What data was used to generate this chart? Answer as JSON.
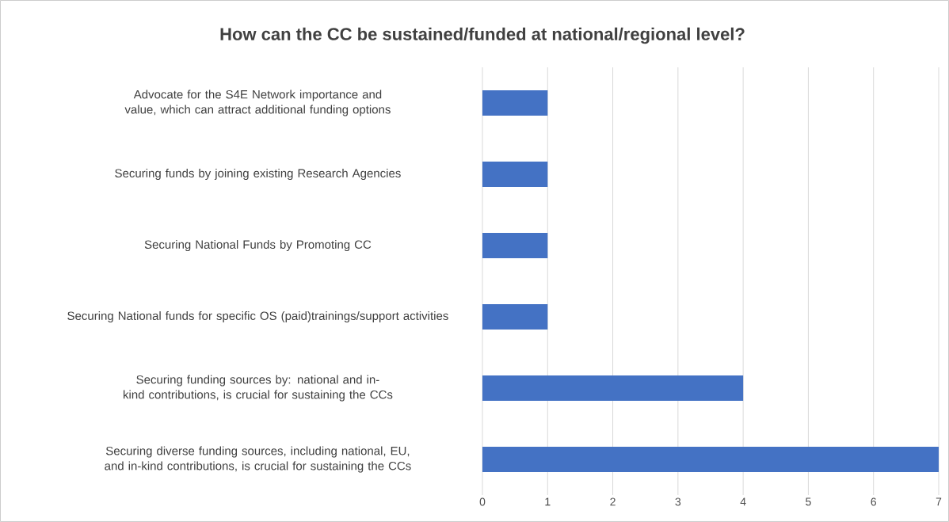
{
  "chart_data": {
    "type": "bar",
    "orientation": "horizontal",
    "title": "How can the CC be sustained/funded at national/regional level?",
    "categories": [
      "Advocate for the S4E Network importance and value, which can attract additional funding options",
      "Securing funds by joining existing Research Agencies",
      "Securing National Funds by Promoting CC",
      "Securing National funds for specific OS (paid)trainings/support activities",
      "Securing funding sources by: national and in-kind contributions, is crucial for sustaining the CCs",
      "Securing diverse funding sources, including national, EU, and in-kind contributions, is crucial for sustaining the CCs"
    ],
    "values": [
      1,
      1,
      1,
      1,
      4,
      7
    ],
    "color": "#4472c4",
    "xlim": [
      0,
      7
    ],
    "xticks": [
      0,
      1,
      2,
      3,
      4,
      5,
      6,
      7
    ],
    "grid": "x"
  }
}
